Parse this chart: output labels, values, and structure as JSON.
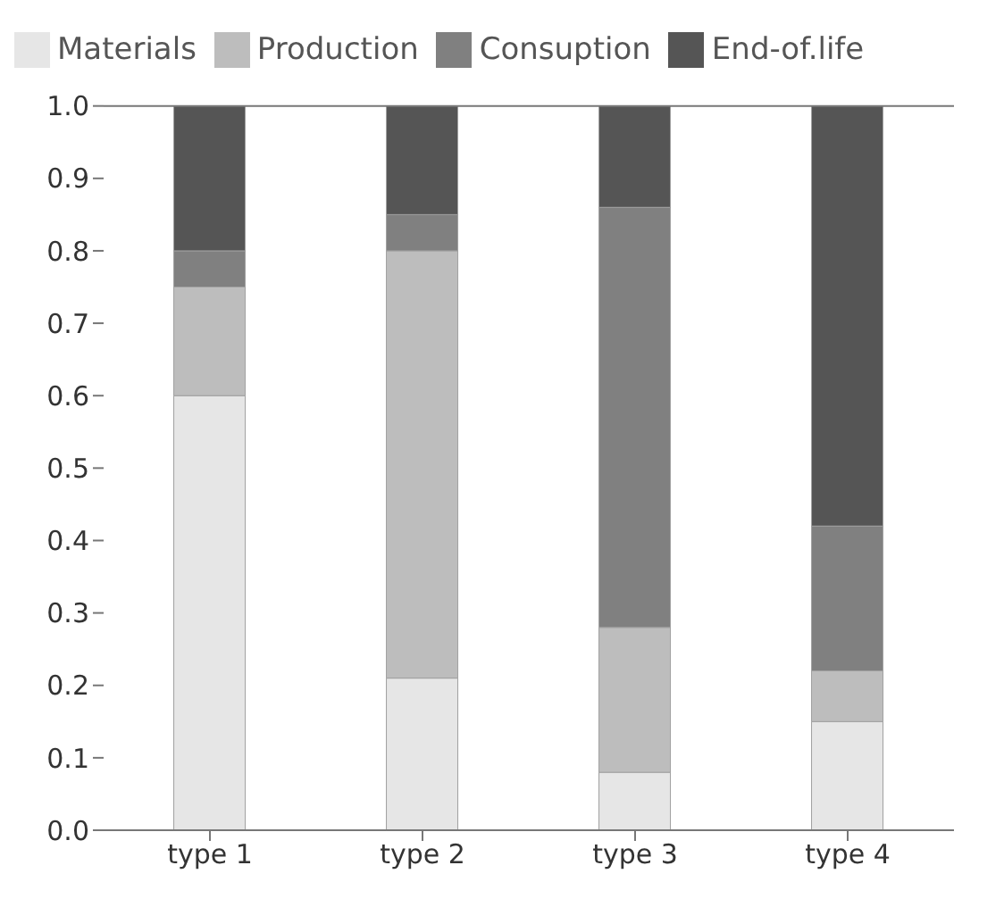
{
  "chart_data": {
    "type": "bar",
    "stacked": true,
    "categories": [
      "type 1",
      "type 2",
      "type 3",
      "type 4"
    ],
    "series": [
      {
        "name": "Materials",
        "color": "#e6e6e6",
        "values": [
          0.6,
          0.21,
          0.08,
          0.15
        ]
      },
      {
        "name": "Production",
        "color": "#bdbdbd",
        "values": [
          0.15,
          0.59,
          0.2,
          0.07
        ]
      },
      {
        "name": "Consuption",
        "color": "#808080",
        "values": [
          0.05,
          0.05,
          0.58,
          0.2
        ]
      },
      {
        "name": "End-of.life",
        "color": "#555555",
        "values": [
          0.2,
          0.15,
          0.14,
          0.58
        ]
      }
    ],
    "ylim": [
      0,
      1
    ],
    "yticks": [
      {
        "value": 0,
        "label": "0.0"
      },
      {
        "value": 0.1,
        "label": "0.1"
      },
      {
        "value": 0.2,
        "label": "0.2"
      },
      {
        "value": 0.3,
        "label": "0.3"
      },
      {
        "value": 0.4,
        "label": "0.4"
      },
      {
        "value": 0.5,
        "label": "0.5"
      },
      {
        "value": 0.6,
        "label": "0.6"
      },
      {
        "value": 0.7,
        "label": "0.7"
      },
      {
        "value": 0.8,
        "label": "0.8"
      },
      {
        "value": 0.9,
        "label": "0.9"
      },
      {
        "value": 1,
        "label": "1.0"
      }
    ],
    "grid": false,
    "legend": "top left"
  }
}
